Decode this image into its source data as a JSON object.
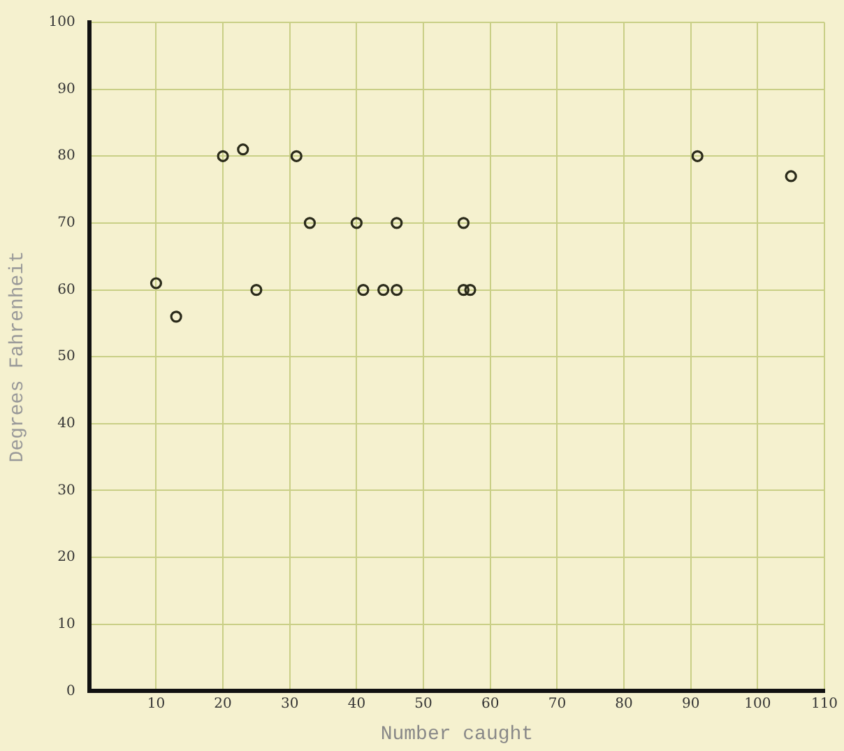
{
  "chart_data": {
    "type": "scatter",
    "xlabel": "Number caught",
    "ylabel": "Degrees Fahrenheit",
    "x": [
      10,
      13,
      20,
      23,
      25,
      31,
      33,
      40,
      46,
      56,
      41,
      44,
      46,
      56,
      57,
      91,
      105
    ],
    "values": [
      61,
      56,
      80,
      81,
      60,
      80,
      70,
      70,
      70,
      70,
      60,
      60,
      60,
      60,
      60,
      80,
      77
    ],
    "color": "#2a2a1a",
    "marker": "circle",
    "xlim": [
      0,
      110
    ],
    "xticks": [
      10,
      20,
      30,
      40,
      50,
      60,
      70,
      80,
      90,
      100,
      110
    ],
    "ylim": [
      0,
      100
    ],
    "yticks": [
      0,
      10,
      20,
      30,
      40,
      50,
      60,
      70,
      80,
      90,
      100
    ],
    "grid": true,
    "legend": false
  }
}
